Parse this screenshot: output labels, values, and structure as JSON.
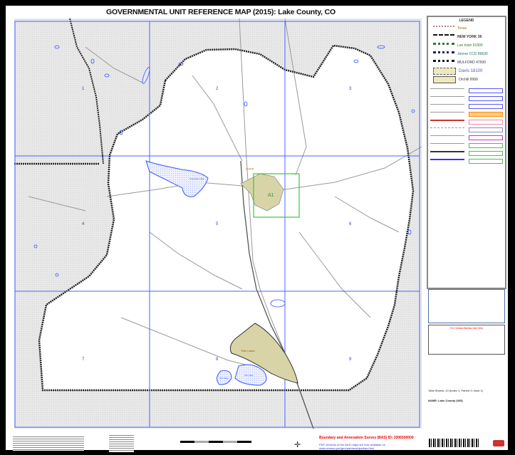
{
  "title": "GOVERNMENTAL UNIT REFERENCE MAP (2015): Lake County, CO",
  "map": {
    "sheet_numbers": [
      "1",
      "2",
      "3",
      "4",
      "5",
      "6",
      "7",
      "8",
      "9"
    ],
    "labels": {
      "lake_left": "Turquoise Lake",
      "city": "Leadville",
      "inset_marker": "A1",
      "town_south": "Twin Lakes",
      "lake_south_1": "Twin Lakes",
      "lake_south_2": "Twin Lakes"
    },
    "colors": {
      "grid": "#4466ff",
      "water": "#3355ff",
      "outside": "#e6e6e6",
      "inset": "#33cc33",
      "place": "#d8d4a8"
    }
  },
  "legend": {
    "title": "LEGEND",
    "sample_values": [
      "Texas",
      "NEW YORK 36",
      "Lee town 91900",
      "Jenner CCD 89630",
      "MULFORD 47500",
      "Davis 18100",
      "Orchill 9999"
    ]
  },
  "footer": {
    "summary": "Total Sheets: 10 (Index 1; Parent 9; Inset 1)",
    "name": "NAME: Lake County (065)",
    "red_notice": "Boundary and Annexation Survey (BAS) ID: 3306500000",
    "pdf_note": "PDF versions of the BAS maps are now available on www.census.gov/geo/partnerships/bas.html",
    "for_census_use": "For Census Bureau Use Only"
  }
}
